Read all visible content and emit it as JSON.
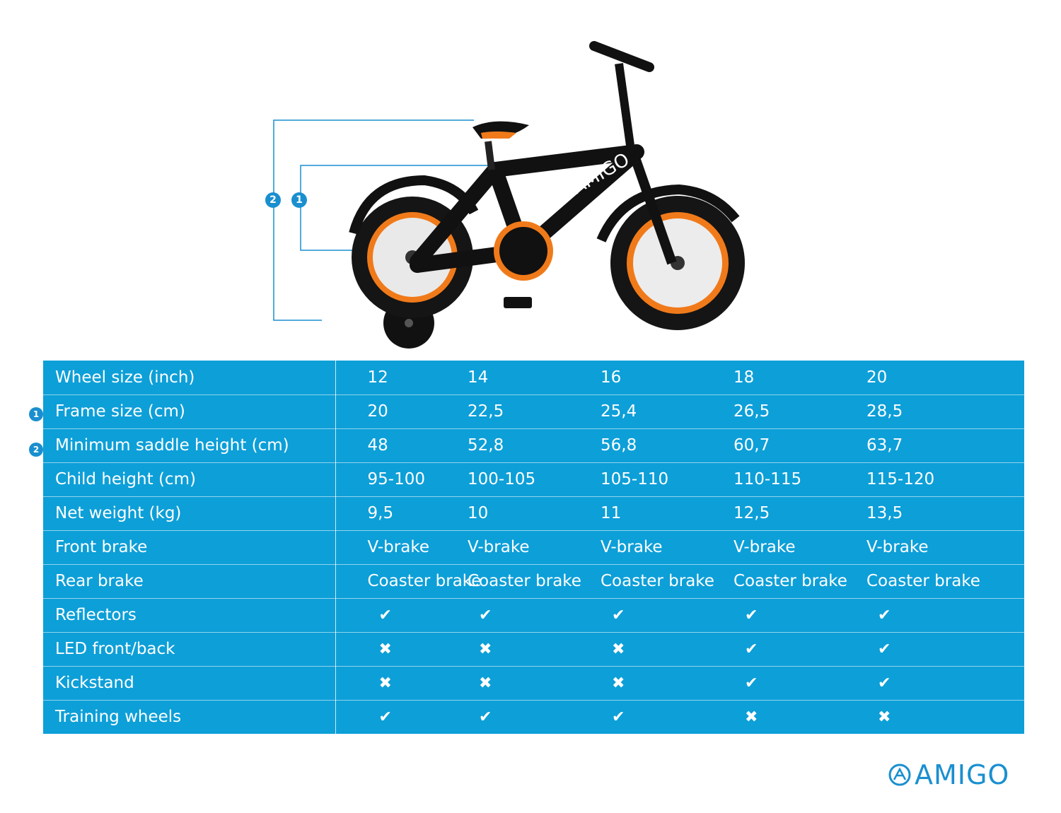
{
  "markers": {
    "one": "1",
    "two": "2"
  },
  "table": {
    "rows": [
      {
        "label": "Wheel size (inch)",
        "values": [
          "12",
          "14",
          "16",
          "18",
          "20"
        ]
      },
      {
        "label": "Frame size (cm)",
        "marker": "1",
        "values": [
          "20",
          "22,5",
          "25,4",
          "26,5",
          "28,5"
        ]
      },
      {
        "label": "Minimum saddle height (cm)",
        "marker": "2",
        "values": [
          "48",
          "52,8",
          "56,8",
          "60,7",
          "63,7"
        ]
      },
      {
        "label": "Child height (cm)",
        "values": [
          "95-100",
          "100-105",
          "105-110",
          "110-115",
          "115-120"
        ]
      },
      {
        "label": "Net weight (kg)",
        "values": [
          "9,5",
          "10",
          "11",
          "12,5",
          "13,5"
        ]
      },
      {
        "label": "Front brake",
        "values": [
          "V-brake",
          "V-brake",
          "V-brake",
          "V-brake",
          "V-brake"
        ]
      },
      {
        "label": "Rear brake",
        "values": [
          "Coaster brake",
          "Coaster brake",
          "Coaster brake",
          "Coaster brake",
          "Coaster brake"
        ]
      },
      {
        "label": "Reflectors",
        "checks": [
          true,
          true,
          true,
          true,
          true
        ]
      },
      {
        "label": "LED front/back",
        "checks": [
          false,
          false,
          false,
          true,
          true
        ]
      },
      {
        "label": "Kickstand",
        "checks": [
          false,
          false,
          false,
          true,
          true
        ]
      },
      {
        "label": "Training wheels",
        "checks": [
          true,
          true,
          true,
          false,
          false
        ]
      }
    ],
    "check_symbol": "✔",
    "cross_symbol": "✖"
  },
  "logo": {
    "text": "AMIGO"
  },
  "colors": {
    "table_bg": "#0d9fd8",
    "accent": "#1a8fcf",
    "bike_orange": "#f07a1a",
    "bike_black": "#111111"
  },
  "icons": {
    "bike": "bicycle-photo",
    "check": "check-icon",
    "cross": "cross-icon"
  }
}
